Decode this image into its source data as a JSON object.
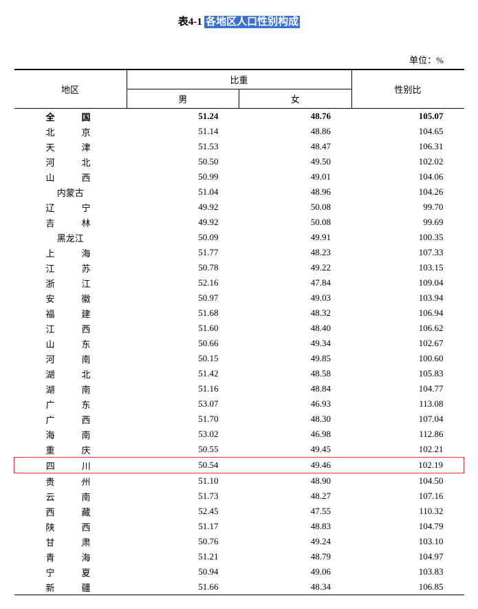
{
  "title": {
    "prefix": "表4-1",
    "highlight": "各地区人口性别构成"
  },
  "unit_label": "单位：%",
  "headers": {
    "region": "地区",
    "proportion": "比重",
    "male": "男",
    "female": "女",
    "ratio": "性别比"
  },
  "highlight_region": "四　川",
  "total_row": {
    "region": "全　国",
    "male": "51.24",
    "female": "48.76",
    "ratio": "105.07"
  },
  "rows": [
    {
      "region": "北　京",
      "male": "51.14",
      "female": "48.86",
      "ratio": "104.65"
    },
    {
      "region": "天　津",
      "male": "51.53",
      "female": "48.47",
      "ratio": "106.31"
    },
    {
      "region": "河　北",
      "male": "50.50",
      "female": "49.50",
      "ratio": "102.02"
    },
    {
      "region": "山　西",
      "male": "50.99",
      "female": "49.01",
      "ratio": "104.06"
    },
    {
      "region": "内蒙古",
      "male": "51.04",
      "female": "48.96",
      "ratio": "104.26",
      "nols": true
    },
    {
      "region": "辽　宁",
      "male": "49.92",
      "female": "50.08",
      "ratio": "99.70"
    },
    {
      "region": "吉　林",
      "male": "49.92",
      "female": "50.08",
      "ratio": "99.69"
    },
    {
      "region": "黑龙江",
      "male": "50.09",
      "female": "49.91",
      "ratio": "100.35",
      "nols": true
    },
    {
      "region": "上　海",
      "male": "51.77",
      "female": "48.23",
      "ratio": "107.33"
    },
    {
      "region": "江　苏",
      "male": "50.78",
      "female": "49.22",
      "ratio": "103.15"
    },
    {
      "region": "浙　江",
      "male": "52.16",
      "female": "47.84",
      "ratio": "109.04"
    },
    {
      "region": "安　徽",
      "male": "50.97",
      "female": "49.03",
      "ratio": "103.94"
    },
    {
      "region": "福　建",
      "male": "51.68",
      "female": "48.32",
      "ratio": "106.94"
    },
    {
      "region": "江　西",
      "male": "51.60",
      "female": "48.40",
      "ratio": "106.62"
    },
    {
      "region": "山　东",
      "male": "50.66",
      "female": "49.34",
      "ratio": "102.67"
    },
    {
      "region": "河　南",
      "male": "50.15",
      "female": "49.85",
      "ratio": "100.60"
    },
    {
      "region": "湖　北",
      "male": "51.42",
      "female": "48.58",
      "ratio": "105.83"
    },
    {
      "region": "湖　南",
      "male": "51.16",
      "female": "48.84",
      "ratio": "104.77"
    },
    {
      "region": "广　东",
      "male": "53.07",
      "female": "46.93",
      "ratio": "113.08"
    },
    {
      "region": "广　西",
      "male": "51.70",
      "female": "48.30",
      "ratio": "107.04"
    },
    {
      "region": "海　南",
      "male": "53.02",
      "female": "46.98",
      "ratio": "112.86"
    },
    {
      "region": "重　庆",
      "male": "50.55",
      "female": "49.45",
      "ratio": "102.21"
    },
    {
      "region": "四　川",
      "male": "50.54",
      "female": "49.46",
      "ratio": "102.19"
    },
    {
      "region": "贵　州",
      "male": "51.10",
      "female": "48.90",
      "ratio": "104.50"
    },
    {
      "region": "云　南",
      "male": "51.73",
      "female": "48.27",
      "ratio": "107.16"
    },
    {
      "region": "西　藏",
      "male": "52.45",
      "female": "47.55",
      "ratio": "110.32"
    },
    {
      "region": "陕　西",
      "male": "51.17",
      "female": "48.83",
      "ratio": "104.79"
    },
    {
      "region": "甘　肃",
      "male": "50.76",
      "female": "49.24",
      "ratio": "103.10"
    },
    {
      "region": "青　海",
      "male": "51.21",
      "female": "48.79",
      "ratio": "104.97"
    },
    {
      "region": "宁　夏",
      "male": "50.94",
      "female": "49.06",
      "ratio": "103.83"
    },
    {
      "region": "新　疆",
      "male": "51.66",
      "female": "48.34",
      "ratio": "106.85"
    }
  ],
  "style": {
    "highlight_bg": "#3a6fd6",
    "highlight_fg": "#ffffff",
    "row_box_color": "#d33"
  }
}
